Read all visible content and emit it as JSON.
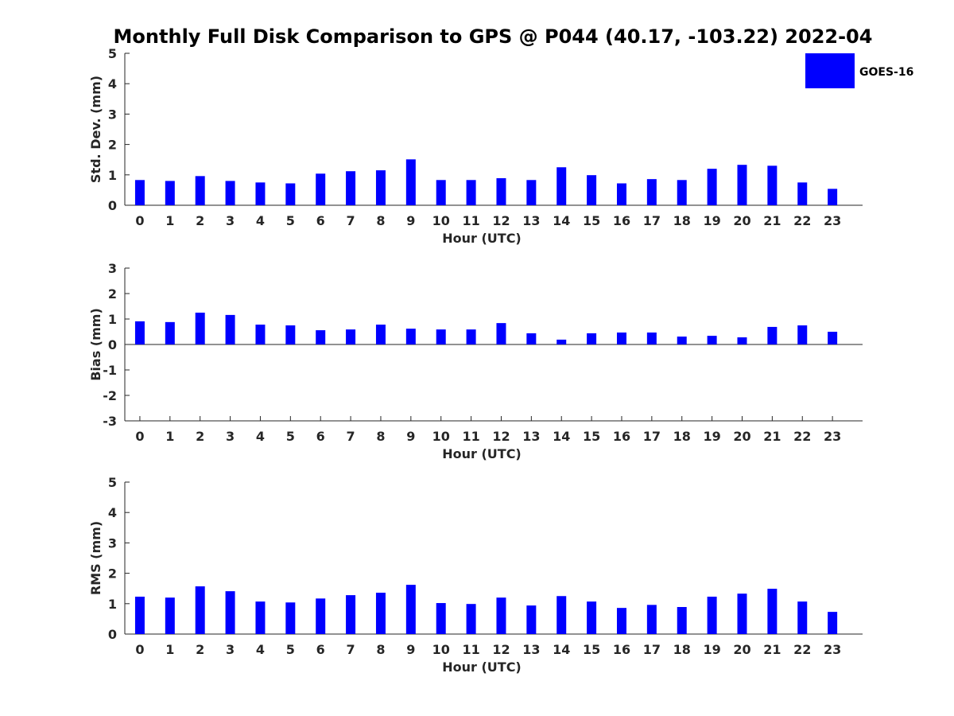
{
  "chart_data": {
    "title": "Monthly Full Disk Comparison to GPS @ P044 (40.17, -103.22) 2022-04",
    "legend": {
      "position": "top-right",
      "label": "GOES-16",
      "color": "#0000ff"
    },
    "panels": [
      {
        "type": "bar",
        "xlabel": "Hour (UTC)",
        "ylabel": "Std. Dev. (mm)",
        "ylim": [
          0,
          5
        ],
        "yticks": [
          "0",
          "1",
          "2",
          "3",
          "4",
          "5"
        ],
        "categories": [
          "0",
          "1",
          "2",
          "3",
          "4",
          "5",
          "6",
          "7",
          "8",
          "9",
          "10",
          "11",
          "12",
          "13",
          "14",
          "15",
          "16",
          "17",
          "18",
          "19",
          "20",
          "21",
          "22",
          "23"
        ],
        "series": [
          {
            "name": "GOES-16",
            "color": "#0000ff",
            "values": [
              0.83,
              0.8,
              0.96,
              0.8,
              0.75,
              0.72,
              1.04,
              1.12,
              1.15,
              1.51,
              0.83,
              0.83,
              0.89,
              0.83,
              1.25,
              0.99,
              0.72,
              0.86,
              0.83,
              1.2,
              1.33,
              1.3,
              0.75,
              0.54
            ]
          }
        ]
      },
      {
        "type": "bar",
        "xlabel": "Hour (UTC)",
        "ylabel": "Bias (mm)",
        "ylim": [
          -3,
          3
        ],
        "yticks": [
          "-3",
          "-2",
          "-1",
          "0",
          "1",
          "2",
          "3"
        ],
        "categories": [
          "0",
          "1",
          "2",
          "3",
          "4",
          "5",
          "6",
          "7",
          "8",
          "9",
          "10",
          "11",
          "12",
          "13",
          "14",
          "15",
          "16",
          "17",
          "18",
          "19",
          "20",
          "21",
          "22",
          "23"
        ],
        "series": [
          {
            "name": "GOES-16",
            "color": "#0000ff",
            "values": [
              0.91,
              0.88,
              1.25,
              1.16,
              0.78,
              0.75,
              0.56,
              0.59,
              0.78,
              0.62,
              0.59,
              0.59,
              0.84,
              0.44,
              0.19,
              0.44,
              0.47,
              0.47,
              0.31,
              0.34,
              0.28,
              0.69,
              0.75,
              0.5
            ]
          }
        ]
      },
      {
        "type": "bar",
        "xlabel": "Hour (UTC)",
        "ylabel": "RMS (mm)",
        "ylim": [
          0,
          5
        ],
        "yticks": [
          "0",
          "1",
          "2",
          "3",
          "4",
          "5"
        ],
        "categories": [
          "0",
          "1",
          "2",
          "3",
          "4",
          "5",
          "6",
          "7",
          "8",
          "9",
          "10",
          "11",
          "12",
          "13",
          "14",
          "15",
          "16",
          "17",
          "18",
          "19",
          "20",
          "21",
          "22",
          "23"
        ],
        "series": [
          {
            "name": "GOES-16",
            "color": "#0000ff",
            "values": [
              1.23,
              1.2,
              1.57,
              1.41,
              1.07,
              1.04,
              1.17,
              1.28,
              1.36,
              1.62,
              1.02,
              0.99,
              1.2,
              0.94,
              1.25,
              1.07,
              0.86,
              0.96,
              0.89,
              1.23,
              1.33,
              1.49,
              1.07,
              0.73
            ]
          }
        ]
      }
    ]
  }
}
